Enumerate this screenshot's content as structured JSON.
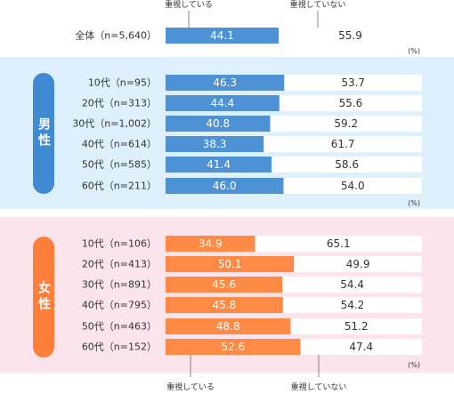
{
  "legend": {
    "left": "重視している",
    "right": "重視していない"
  },
  "unit": "(%)",
  "colors": {
    "all_bar": "#4d92d4",
    "male_bar": "#4d92d4",
    "female_bar": "#ff8a45",
    "male_panel": "#ddf0fb",
    "female_panel": "#fbe4ec",
    "male_pill": "#3f8ad1",
    "female_pill": "#ff7f3a",
    "dot": "#666666"
  },
  "chart_data": [
    {
      "type": "bar",
      "orientation": "horizontal",
      "stacked": true,
      "categories": [
        "全体（n=5,640）"
      ],
      "series": [
        {
          "name": "重視している",
          "values": [
            44.1
          ]
        },
        {
          "name": "重視していない",
          "values": [
            55.9
          ]
        }
      ],
      "xlim": [
        0,
        100
      ]
    },
    {
      "type": "bar",
      "orientation": "horizontal",
      "stacked": true,
      "group_label": "男性",
      "categories": [
        "10代（n=95）",
        "20代（n=313）",
        "30代（n=1,002）",
        "40代（n=614）",
        "50代（n=585）",
        "60代（n=211）"
      ],
      "series": [
        {
          "name": "重視している",
          "values": [
            46.3,
            44.4,
            40.8,
            38.3,
            41.4,
            46.0
          ]
        },
        {
          "name": "重視していない",
          "values": [
            53.7,
            55.6,
            59.2,
            61.7,
            58.6,
            54.0
          ]
        }
      ],
      "xlim": [
        0,
        100
      ]
    },
    {
      "type": "bar",
      "orientation": "horizontal",
      "stacked": true,
      "group_label": "女性",
      "categories": [
        "10代（n=106）",
        "20代（n=413）",
        "30代（n=891）",
        "40代（n=795）",
        "50代（n=463）",
        "60代（n=152）"
      ],
      "series": [
        {
          "name": "重視している",
          "values": [
            34.9,
            50.1,
            45.6,
            45.8,
            48.8,
            52.6
          ]
        },
        {
          "name": "重視していない",
          "values": [
            65.1,
            49.9,
            54.4,
            54.2,
            51.2,
            47.4
          ]
        }
      ],
      "xlim": [
        0,
        100
      ]
    }
  ]
}
